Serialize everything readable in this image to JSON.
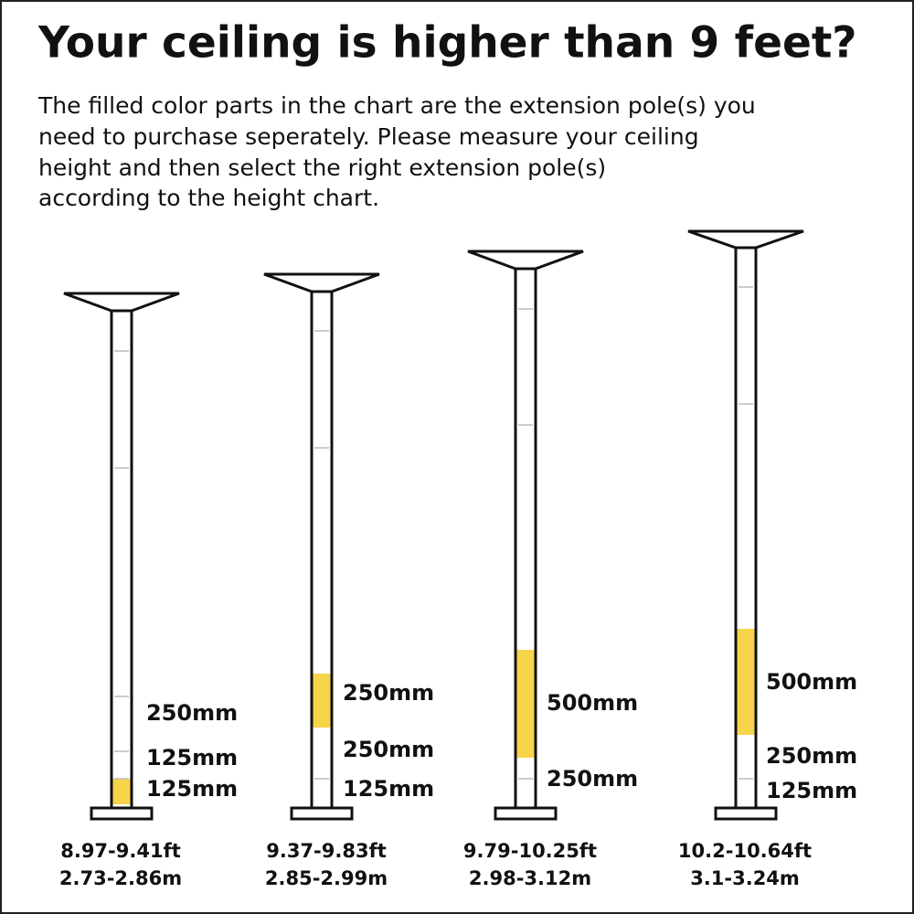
{
  "header": {
    "title": "Your ceiling is higher than 9 feet?",
    "description": [
      "The filled color parts in the chart are the extension pole(s) you",
      "need to purchase seperately.  Please measure your ceiling",
      "height and then select the right extension pole(s)",
      "according to the height chart."
    ]
  },
  "poles": [
    {
      "segments": [
        "250mm",
        "125mm",
        "125mm"
      ],
      "feet": "8.97-9.41ft",
      "meters": "2.73-2.86m"
    },
    {
      "segments": [
        "250mm",
        "250mm",
        "125mm"
      ],
      "feet": "9.37-9.83ft",
      "meters": "2.85-2.99m"
    },
    {
      "segments": [
        "500mm",
        "250mm"
      ],
      "feet": "9.79-10.25ft",
      "meters": "2.98-3.12m"
    },
    {
      "segments": [
        "500mm",
        "250mm",
        "125mm"
      ],
      "feet": "10.2-10.64ft",
      "meters": "3.1-3.24m"
    }
  ]
}
